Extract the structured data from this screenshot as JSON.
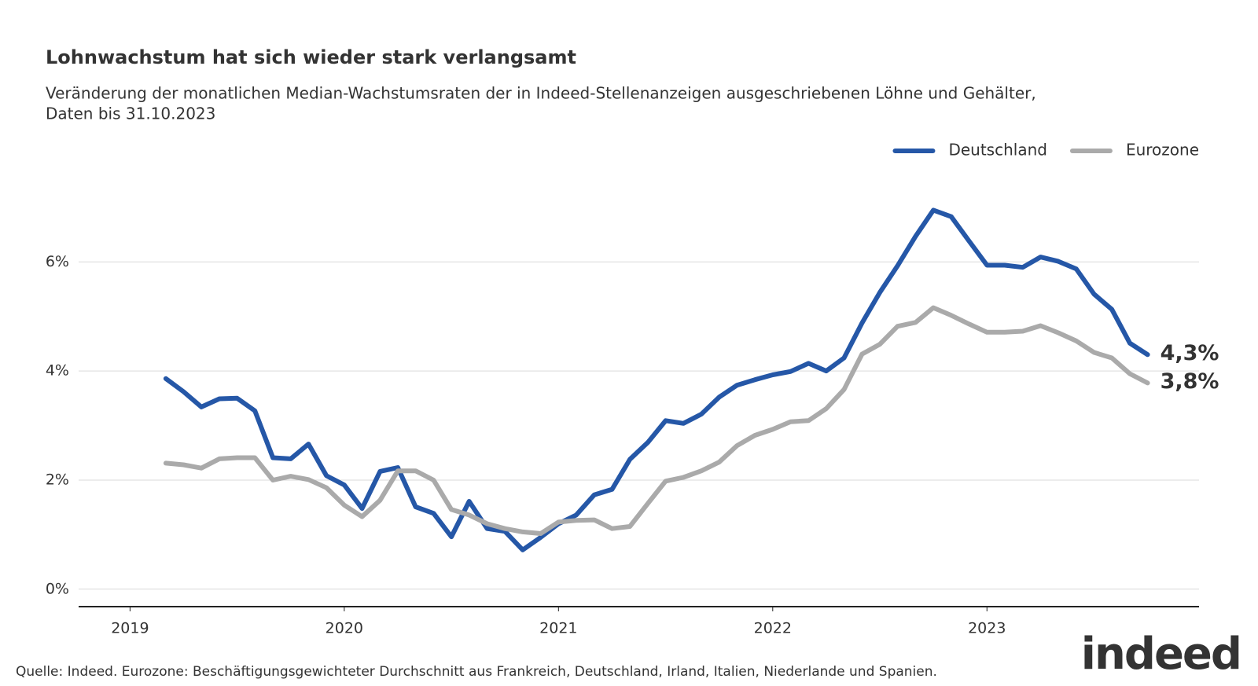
{
  "chart_data": {
    "type": "line",
    "title": "Lohnwachstum hat sich wieder stark verlangsamt",
    "subtitle": [
      "Veränderung der monatlichen Median-Wachstumsraten der in Indeed-Stellenanzeigen ausgeschriebenen Löhne und Gehälter,",
      "Daten bis 31.10.2023"
    ],
    "source": "Quelle: Indeed. Eurozone: Beschäftigungsgewichteter Durchschnitt aus Frankreich, Deutschland, Irland, Italien, Niederlande und Spanien.",
    "logo": "indeed",
    "legend": "top-right",
    "grid": true,
    "x": [
      2019.167,
      2019.25,
      2019.333,
      2019.417,
      2019.5,
      2019.583,
      2019.667,
      2019.75,
      2019.833,
      2019.917,
      2020,
      2020.083,
      2020.167,
      2020.25,
      2020.333,
      2020.417,
      2020.5,
      2020.583,
      2020.667,
      2020.75,
      2020.833,
      2020.917,
      2021,
      2021.083,
      2021.167,
      2021.25,
      2021.333,
      2021.417,
      2021.5,
      2021.583,
      2021.667,
      2021.75,
      2021.833,
      2021.917,
      2022,
      2022.083,
      2022.167,
      2022.25,
      2022.333,
      2022.417,
      2022.5,
      2022.583,
      2022.667,
      2022.75,
      2022.833,
      2022.917,
      2023,
      2023.083,
      2023.167,
      2023.25,
      2023.333,
      2023.417,
      2023.5,
      2023.583,
      2023.667,
      2023.75
    ],
    "xlim": [
      2018.76,
      2023.99
    ],
    "xticks": [
      2019,
      2020,
      2021,
      2022,
      2023
    ],
    "ylim": [
      -0.32,
      7.2
    ],
    "yticks": [
      {
        "value": 0,
        "label": "0%"
      },
      {
        "value": 2,
        "label": "2%"
      },
      {
        "value": 4,
        "label": "4%"
      },
      {
        "value": 6,
        "label": "6%"
      }
    ],
    "series": [
      {
        "name": "Deutschland",
        "color": "#2557a7",
        "values": [
          3.86,
          3.62,
          3.34,
          3.49,
          3.5,
          3.27,
          2.41,
          2.39,
          2.66,
          2.08,
          1.91,
          1.48,
          2.16,
          2.23,
          1.51,
          1.39,
          0.96,
          1.61,
          1.11,
          1.06,
          0.72,
          0.95,
          1.2,
          1.36,
          1.73,
          1.83,
          2.38,
          2.69,
          3.09,
          3.04,
          3.21,
          3.52,
          3.74,
          3.84,
          3.93,
          3.99,
          4.14,
          4.0,
          4.24,
          4.88,
          5.44,
          5.93,
          6.47,
          6.95,
          6.83,
          6.38,
          5.94,
          5.94,
          5.9,
          6.09,
          6.01,
          5.87,
          5.41,
          5.13,
          4.51,
          4.3
        ],
        "value_labels": [
          null,
          null,
          null,
          null,
          null,
          null,
          null,
          null,
          null,
          null,
          null,
          null,
          null,
          null,
          null,
          null,
          null,
          null,
          null,
          null,
          null,
          null,
          null,
          null,
          null,
          null,
          null,
          null,
          null,
          null,
          null,
          null,
          null,
          null,
          null,
          null,
          null,
          null,
          null,
          null,
          null,
          null,
          null,
          null,
          null,
          null,
          null,
          null,
          null,
          null,
          null,
          null,
          null,
          null,
          null,
          "4,3%"
        ]
      },
      {
        "name": "Eurozone",
        "color": "#aaaaaa",
        "values": [
          2.31,
          2.28,
          2.22,
          2.39,
          2.41,
          2.41,
          2.0,
          2.07,
          2.01,
          1.86,
          1.54,
          1.33,
          1.63,
          2.17,
          2.17,
          2.0,
          1.46,
          1.36,
          1.2,
          1.11,
          1.05,
          1.02,
          1.23,
          1.26,
          1.27,
          1.11,
          1.15,
          1.57,
          1.98,
          2.05,
          2.17,
          2.33,
          2.63,
          2.82,
          2.93,
          3.07,
          3.09,
          3.31,
          3.66,
          4.31,
          4.49,
          4.82,
          4.89,
          5.16,
          5.02,
          4.86,
          4.71,
          4.71,
          4.73,
          4.83,
          4.7,
          4.55,
          4.34,
          4.24,
          3.95,
          3.78
        ],
        "value_labels": [
          null,
          null,
          null,
          null,
          null,
          null,
          null,
          null,
          null,
          null,
          null,
          null,
          null,
          null,
          null,
          null,
          null,
          null,
          null,
          null,
          null,
          null,
          null,
          null,
          null,
          null,
          null,
          null,
          null,
          null,
          null,
          null,
          null,
          null,
          null,
          null,
          null,
          null,
          null,
          null,
          null,
          null,
          null,
          null,
          null,
          null,
          null,
          null,
          null,
          null,
          null,
          null,
          null,
          null,
          null,
          "3,8%"
        ]
      }
    ]
  }
}
